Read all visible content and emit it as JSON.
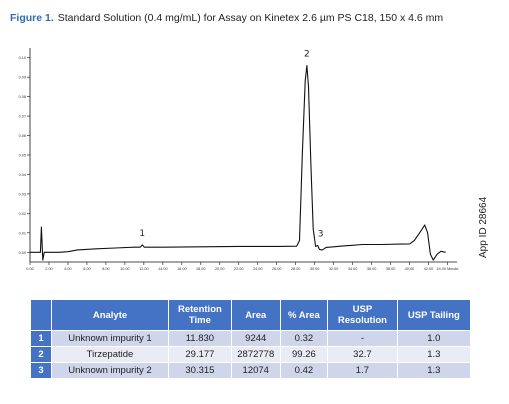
{
  "caption": {
    "figure_label": "Figure  1.",
    "text": "Standard Solution (0.4 mg/mL) for Assay on Kinetex 2.6 µm PS C18, 150 x 4.6 mm"
  },
  "side_label": "App ID 28664",
  "chart_data": {
    "type": "line",
    "title": "Standard Solution (0.4 mg/mL) for Assay on Kinetex 2.6 µm PS C18, 150 x 4.6 mm",
    "xlabel": "Minutes",
    "ylabel": "",
    "xlim": [
      0,
      45
    ],
    "ylim": [
      -0.005,
      0.105
    ],
    "x_ticks": [
      0,
      2,
      4,
      6,
      8,
      10,
      12,
      14,
      16,
      18,
      20,
      22,
      24,
      26,
      28,
      30,
      32,
      34,
      36,
      38,
      40,
      42,
      44
    ],
    "x_tick_labels": [
      "0.00",
      "2.00",
      "4.00",
      "6.00",
      "8.00",
      "10.00",
      "12.00",
      "14.00",
      "16.00",
      "18.00",
      "20.00",
      "22.00",
      "24.00",
      "26.00",
      "28.00",
      "30.00",
      "32.00",
      "34.00",
      "36.00",
      "38.00",
      "40.00",
      "42.00",
      "44.00 Minute"
    ],
    "y_ticks": [
      0,
      0.01,
      0.02,
      0.03,
      0.04,
      0.05,
      0.06,
      0.07,
      0.08,
      0.09,
      0.1
    ],
    "y_tick_labels": [
      "0.00",
      "0.01",
      "0.02",
      "0.03",
      "0.04",
      "0.05",
      "0.06",
      "0.07",
      "0.08",
      "0.09",
      "0.10"
    ],
    "series": [
      {
        "color": "#111111",
        "points": [
          [
            0,
            0.0
          ],
          [
            0.9,
            0.0
          ],
          [
            1.1,
            0.0
          ],
          [
            1.2,
            0.013
          ],
          [
            1.35,
            -0.004
          ],
          [
            1.5,
            0.0
          ],
          [
            3,
            0.0
          ],
          [
            4,
            0.0003
          ],
          [
            5,
            0.0012
          ],
          [
            7,
            0.0018
          ],
          [
            9,
            0.0022
          ],
          [
            11,
            0.0026
          ],
          [
            11.6,
            0.0026
          ],
          [
            11.83,
            0.0038
          ],
          [
            12.05,
            0.0026
          ],
          [
            14,
            0.0026
          ],
          [
            18,
            0.0028
          ],
          [
            22,
            0.003
          ],
          [
            26,
            0.003
          ],
          [
            28.1,
            0.0031
          ],
          [
            28.4,
            0.006
          ],
          [
            28.7,
            0.05
          ],
          [
            29.0,
            0.088
          ],
          [
            29.177,
            0.096
          ],
          [
            29.35,
            0.085
          ],
          [
            29.6,
            0.045
          ],
          [
            29.85,
            0.012
          ],
          [
            30.1,
            0.003
          ],
          [
            30.315,
            0.0035
          ],
          [
            30.5,
            0.0015
          ],
          [
            30.8,
            0.0012
          ],
          [
            31.2,
            0.0025
          ],
          [
            32,
            0.0028
          ],
          [
            33,
            0.0033
          ],
          [
            34,
            0.0036
          ],
          [
            35,
            0.004
          ],
          [
            37,
            0.004
          ],
          [
            39,
            0.0042
          ],
          [
            40,
            0.0043
          ],
          [
            40.5,
            0.006
          ],
          [
            41.2,
            0.011
          ],
          [
            41.6,
            0.014
          ],
          [
            41.9,
            0.01
          ],
          [
            42.2,
            -0.001
          ],
          [
            42.5,
            -0.004
          ],
          [
            42.9,
            -0.001
          ],
          [
            43.3,
            0.0005
          ],
          [
            43.8,
            0.0
          ]
        ]
      }
    ],
    "peaks": [
      {
        "label": "1",
        "x": 11.83,
        "y": 0.0038
      },
      {
        "label": "2",
        "x": 29.177,
        "y": 0.096
      },
      {
        "label": "3",
        "x": 30.315,
        "y": 0.0035
      }
    ]
  },
  "table": {
    "headers": [
      "",
      "Analyte",
      "Retention\nTime",
      "Area",
      "% Area",
      "USP\nResolution",
      "USP Tailing"
    ],
    "rows": [
      [
        "1",
        "Unknown impurity 1",
        "11.830",
        "9244",
        "0.32",
        "-",
        "1.0"
      ],
      [
        "2",
        "Tirzepatide",
        "29.177",
        "2872778",
        "99.26",
        "32.7",
        "1.3"
      ],
      [
        "3",
        "Unknown impurity 2",
        "30.315",
        "12074",
        "0.42",
        "1.7",
        "1.3"
      ]
    ]
  }
}
